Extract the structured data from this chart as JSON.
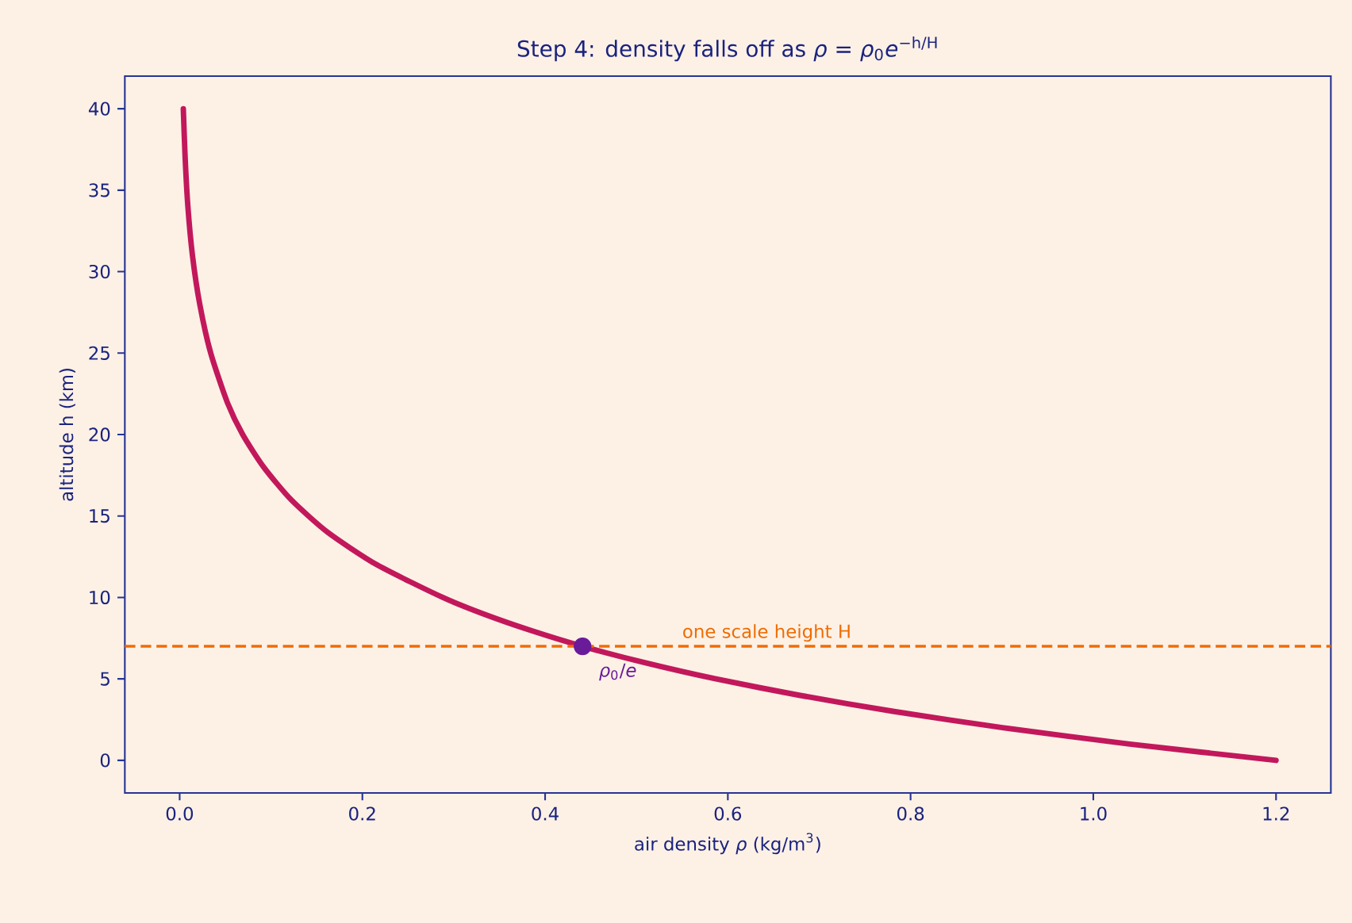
{
  "chart_data": {
    "type": "line",
    "title": "Step 4: density falls off as *ρ* = *ρ*$_{0}$*e*$^{−h/H}$",
    "xlabel": "air density *ρ* (kg/m$^{3}$)",
    "ylabel": "altitude h (km)",
    "series": [
      {
        "color": "#c2185b",
        "x": [
          1.2,
          1.04,
          0.902,
          0.782,
          0.678,
          0.587,
          0.509,
          0.441,
          0.383,
          0.332,
          0.288,
          0.216,
          0.162,
          0.122,
          0.092,
          0.069,
          0.052,
          0.034,
          0.022,
          0.014,
          0.009,
          0.006,
          0.004
        ],
        "values": [
          0,
          1,
          2,
          3,
          4,
          5,
          6,
          7,
          8,
          9,
          10,
          12,
          14,
          16,
          18,
          20,
          22,
          25,
          28,
          31,
          34,
          37,
          40
        ]
      },
      {
        "type": "scatter",
        "color": "#6a1b9a",
        "marker": "circle",
        "x": [
          0.441
        ],
        "values": [
          7
        ]
      }
    ],
    "ref_lines": [
      {
        "axis": "y",
        "value": 7,
        "label": "one scale height H",
        "color": "#ef6c00",
        "line_style": "dashed"
      }
    ],
    "annotations": [
      {
        "text": "*ρ*$_{0}$/*e*",
        "x": 0.441,
        "y": 7
      }
    ],
    "xlim": [
      -0.06,
      1.26
    ],
    "ylim": [
      -2,
      42
    ],
    "xticks": [
      {
        "value": 0,
        "label": "0.0"
      },
      {
        "value": 0.2,
        "label": "0.2"
      },
      {
        "value": 0.4,
        "label": "0.4"
      },
      {
        "value": 0.6,
        "label": "0.6"
      },
      {
        "value": 0.8,
        "label": "0.8"
      },
      {
        "value": 1.0,
        "label": "1.0"
      },
      {
        "value": 1.2,
        "label": "1.2"
      }
    ],
    "yticks": [
      0,
      5,
      10,
      15,
      20,
      25,
      30,
      35,
      40
    ]
  }
}
